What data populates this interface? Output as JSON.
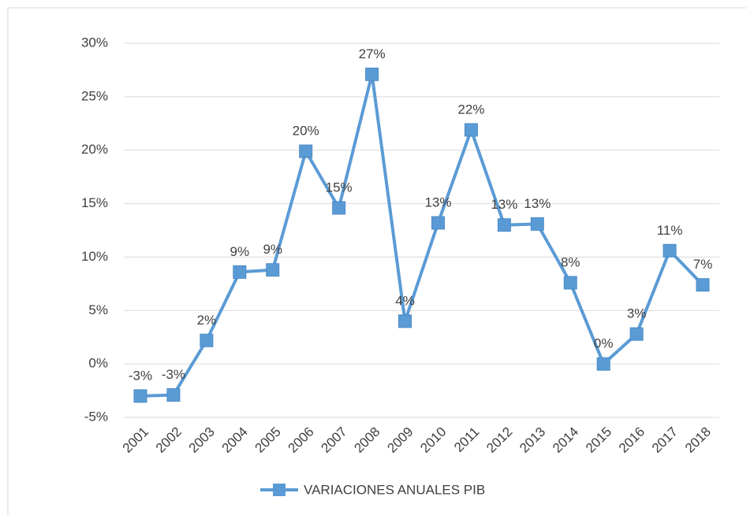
{
  "chart_data": {
    "type": "line",
    "categories": [
      "2001",
      "2002",
      "2003",
      "2004",
      "2005",
      "2006",
      "2007",
      "2008",
      "2009",
      "2010",
      "2011",
      "2012",
      "2013",
      "2014",
      "2015",
      "2016",
      "2017",
      "2018"
    ],
    "series": [
      {
        "name": "VARIACIONES ANUALES PIB",
        "color": "#5b9bd5",
        "values": [
          -3.0,
          -2.9,
          2.2,
          8.6,
          8.8,
          19.9,
          14.6,
          27.1,
          4.0,
          13.2,
          21.9,
          13.0,
          13.1,
          7.6,
          0.0,
          2.8,
          10.6,
          7.4
        ],
        "value_labels": [
          "-3%",
          "-3%",
          "2%",
          "9%",
          "9%",
          "20%",
          "15%",
          "27%",
          "4%",
          "13%",
          "22%",
          "13%",
          "13%",
          "8%",
          "0%",
          "3%",
          "11%",
          "7%"
        ]
      }
    ],
    "ylim": [
      -5,
      30
    ],
    "yticks": [
      {
        "value": -5,
        "label": "-5%"
      },
      {
        "value": 0,
        "label": "0%"
      },
      {
        "value": 5,
        "label": "5%"
      },
      {
        "value": 10,
        "label": "10%"
      },
      {
        "value": 15,
        "label": "15%"
      },
      {
        "value": 20,
        "label": "20%"
      },
      {
        "value": 25,
        "label": "25%"
      },
      {
        "value": 30,
        "label": "30%"
      }
    ],
    "grid": true,
    "legend": "bottom"
  }
}
